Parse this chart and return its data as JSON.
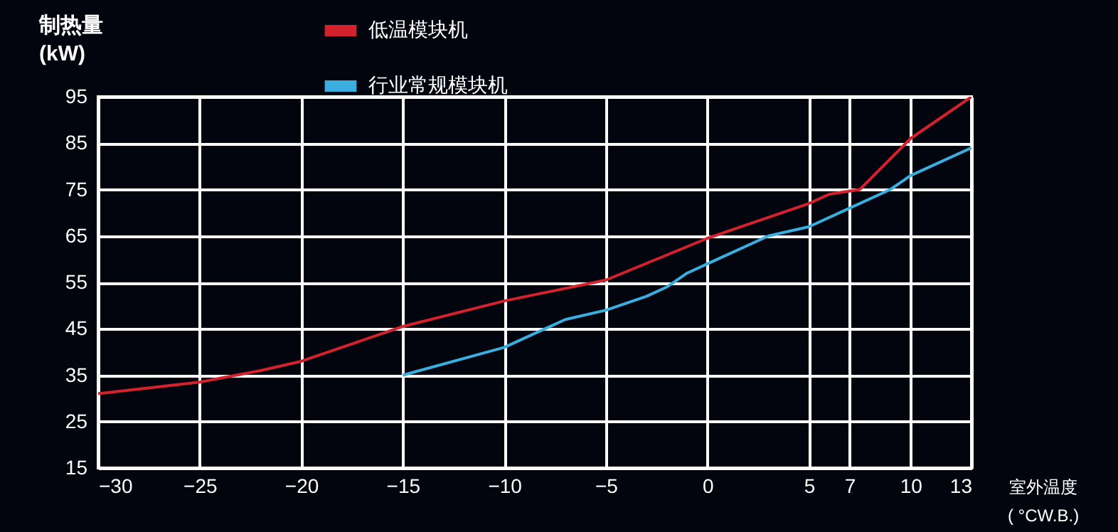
{
  "chart_data": {
    "type": "line",
    "xlabel": "室外温度\n( °CW.B.)",
    "ylabel": "制热量\n(kW)",
    "xlim": [
      -30,
      13
    ],
    "xticks": [
      -30,
      -25,
      -20,
      -15,
      -10,
      -5,
      0,
      5,
      7,
      10,
      13
    ],
    "ylim": [
      15,
      95
    ],
    "yticks": [
      15,
      25,
      35,
      45,
      55,
      65,
      75,
      85,
      95
    ],
    "grid": true,
    "legend": "top",
    "marker": "none",
    "line_style": "solid",
    "series": [
      {
        "name": "低温模块机",
        "color": "#d3212d",
        "x": [
          -30,
          -25,
          -22,
          -20,
          -15,
          -10,
          -5,
          0,
          5,
          6,
          7.5,
          10,
          13
        ],
        "values": [
          31,
          33.5,
          36,
          38,
          45.5,
          51,
          55.5,
          64.5,
          72,
          74,
          75,
          86,
          95
        ]
      },
      {
        "name": "行业常规模块机",
        "color": "#3aaee0",
        "x": [
          -15,
          -10,
          -7,
          -5,
          -3,
          -2,
          -1,
          0,
          3,
          5,
          7,
          9,
          10,
          13
        ],
        "values": [
          35,
          41,
          47,
          49,
          52,
          54,
          57,
          59,
          65,
          67,
          71,
          75,
          78,
          84
        ]
      }
    ]
  }
}
